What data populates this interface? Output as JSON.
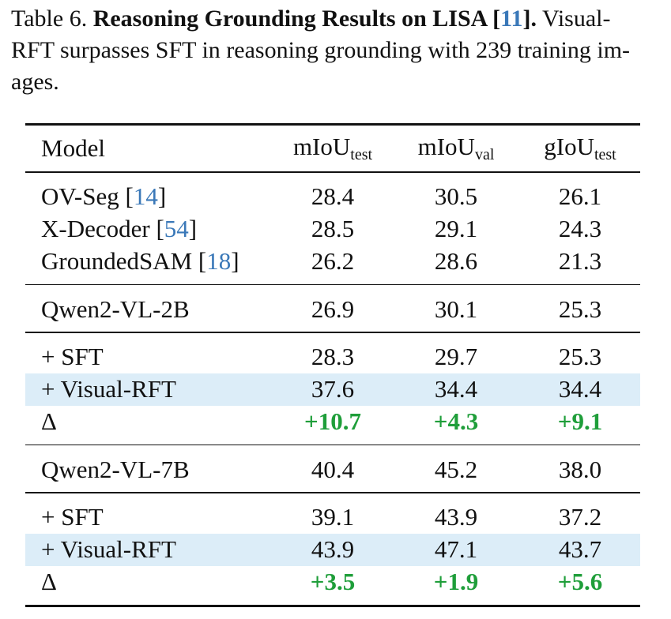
{
  "caption": {
    "label": "Table 6.",
    "title_pre": "Reasoning Grounding Results on LISA [",
    "title_ref": "11",
    "title_post": "].",
    "line1_tail": "Visual-",
    "line2": "RFT surpasses SFT in reasoning grounding with 239 training im-",
    "line3": "ages."
  },
  "header": {
    "model": "Model",
    "col1_main": "mIoU",
    "col1_sub": "test",
    "col2_main": "mIoU",
    "col2_sub": "val",
    "col3_main": "gIoU",
    "col3_sub": "test"
  },
  "rows": [
    {
      "name": "OV-Seg [",
      "ref": "14",
      "close": "]",
      "v": [
        "28.4",
        "30.5",
        "26.1"
      ]
    },
    {
      "name": "X-Decoder [",
      "ref": "54",
      "close": "]",
      "v": [
        "28.5",
        "29.1",
        "24.3"
      ]
    },
    {
      "name": "GroundedSAM [",
      "ref": "18",
      "close": "]",
      "v": [
        "26.2",
        "28.6",
        "21.3"
      ]
    },
    {
      "name": "Qwen2-VL-2B",
      "v": [
        "26.9",
        "30.1",
        "25.3"
      ]
    },
    {
      "name": "+ SFT",
      "v": [
        "28.3",
        "29.7",
        "25.3"
      ]
    },
    {
      "name": "+ Visual-RFT",
      "v": [
        "37.6",
        "34.4",
        "34.4"
      ]
    },
    {
      "name": "Δ",
      "v": [
        "+10.7",
        "+4.3",
        "+9.1"
      ]
    },
    {
      "name": "Qwen2-VL-7B",
      "v": [
        "40.4",
        "45.2",
        "38.0"
      ]
    },
    {
      "name": "+ SFT",
      "v": [
        "39.1",
        "43.9",
        "37.2"
      ]
    },
    {
      "name": "+ Visual-RFT",
      "v": [
        "43.9",
        "47.1",
        "43.7"
      ]
    },
    {
      "name": "Δ",
      "v": [
        "+3.5",
        "+1.9",
        "+5.6"
      ]
    }
  ],
  "colors": {
    "highlight_row": "#dcedf8",
    "delta_green": "#1f9e3a",
    "ref_blue": "#3a78b8"
  }
}
